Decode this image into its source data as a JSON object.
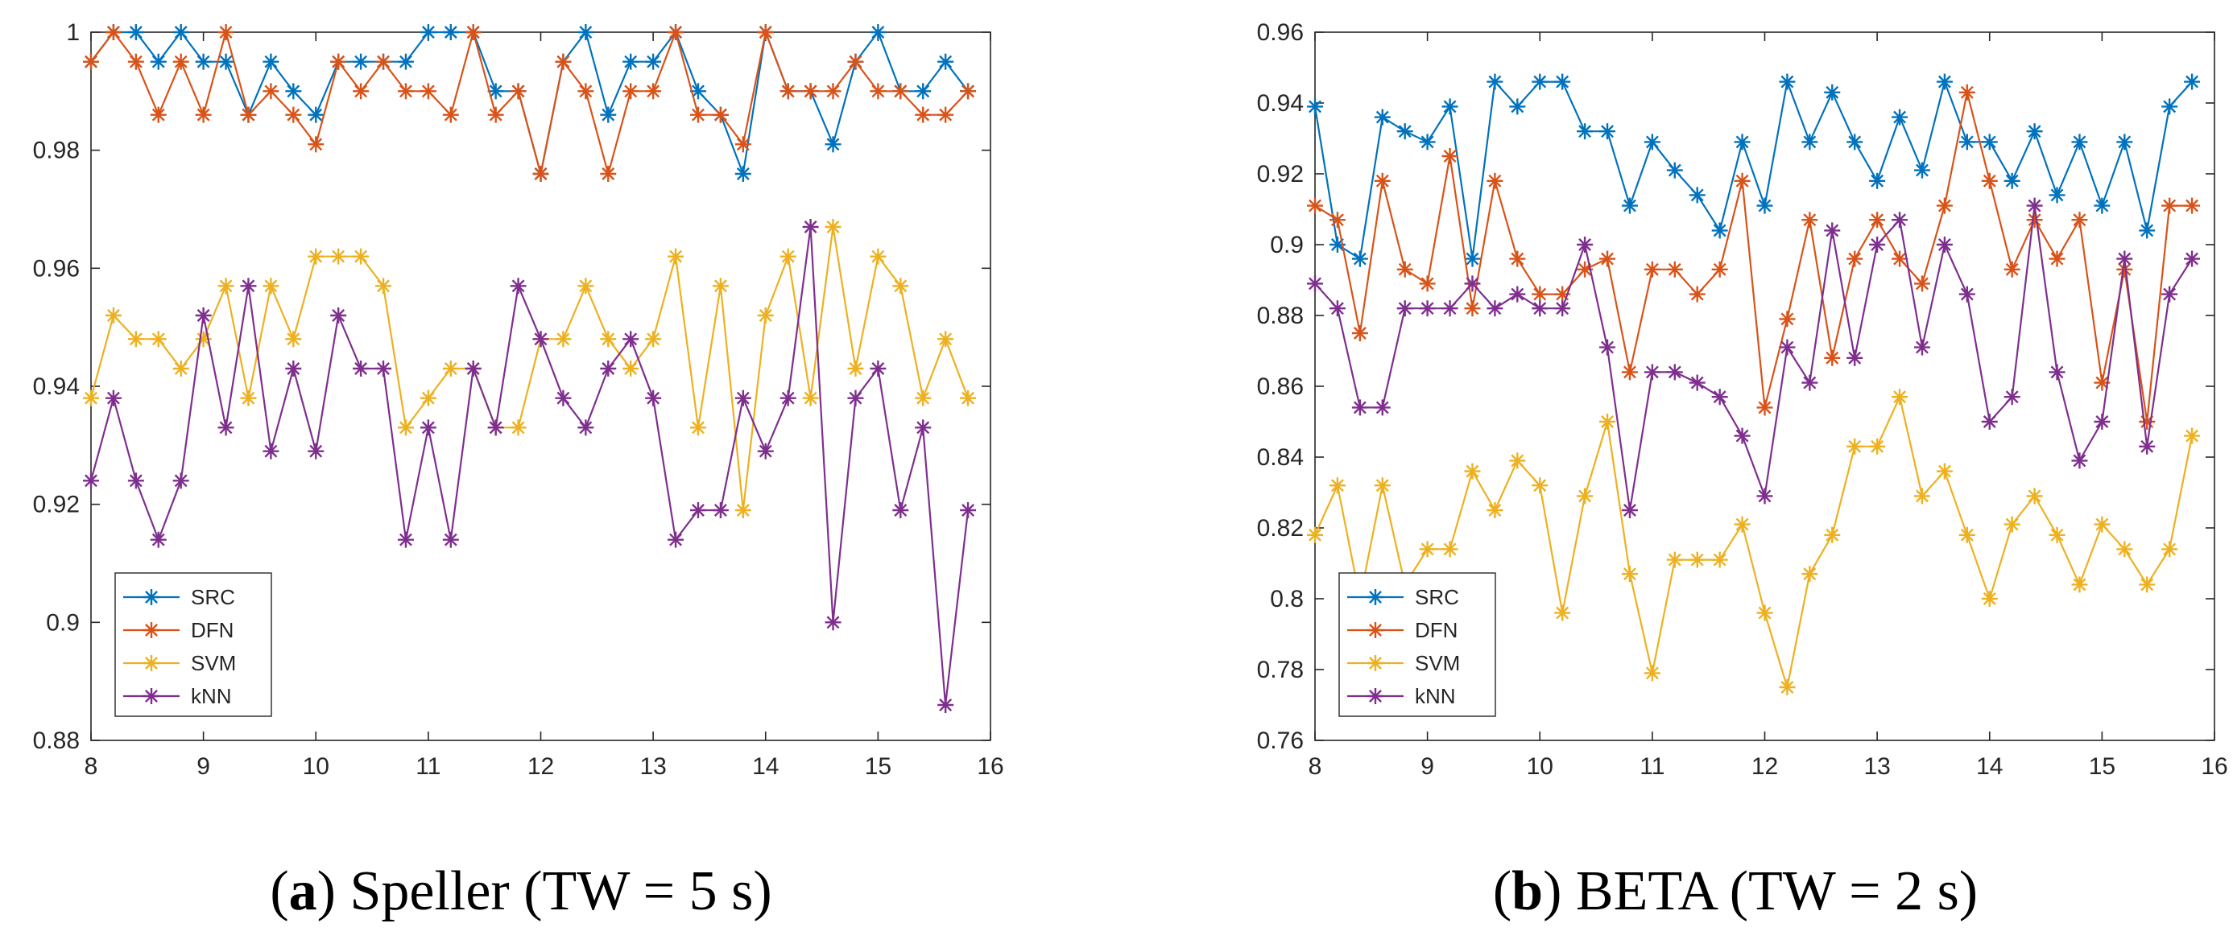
{
  "chart_data": [
    {
      "type": "line",
      "caption": {
        "letter": "a",
        "text": " Speller (TW = 5 s)"
      },
      "xlim": [
        8,
        16
      ],
      "ylim": [
        0.88,
        1.0
      ],
      "xticks": [
        8,
        9,
        10,
        11,
        12,
        13,
        14,
        15,
        16
      ],
      "yticks": [
        0.88,
        0.9,
        0.92,
        0.94,
        0.96,
        0.98,
        1
      ],
      "ytick_labels": [
        "0.88",
        "0.9",
        "0.92",
        "0.94",
        "0.96",
        "0.98",
        "1"
      ],
      "legend_position": "bottom-left",
      "x": [
        8.0,
        8.2,
        8.4,
        8.6,
        8.8,
        9.0,
        9.2,
        9.4,
        9.6,
        9.8,
        10.0,
        10.2,
        10.4,
        10.6,
        10.8,
        11.0,
        11.2,
        11.4,
        11.6,
        11.8,
        12.0,
        12.2,
        12.4,
        12.6,
        12.8,
        13.0,
        13.2,
        13.4,
        13.6,
        13.8,
        14.0,
        14.2,
        14.4,
        14.6,
        14.8,
        15.0,
        15.2,
        15.4,
        15.6,
        15.8
      ],
      "series": [
        {
          "name": "SRC",
          "color": "#0072BD",
          "values": [
            0.995,
            1.0,
            1.0,
            0.995,
            1.0,
            0.995,
            0.995,
            0.986,
            0.995,
            0.99,
            0.986,
            0.995,
            0.995,
            0.995,
            0.995,
            1.0,
            1.0,
            1.0,
            0.99,
            0.99,
            0.976,
            0.995,
            1.0,
            0.986,
            0.995,
            0.995,
            1.0,
            0.99,
            0.986,
            0.976,
            1.0,
            0.99,
            0.99,
            0.981,
            0.995,
            1.0,
            0.99,
            0.99,
            0.995,
            0.99
          ]
        },
        {
          "name": "DFN",
          "color": "#D95319",
          "values": [
            0.995,
            1.0,
            0.995,
            0.986,
            0.995,
            0.986,
            1.0,
            0.986,
            0.99,
            0.986,
            0.981,
            0.995,
            0.99,
            0.995,
            0.99,
            0.99,
            0.986,
            1.0,
            0.986,
            0.99,
            0.976,
            0.995,
            0.99,
            0.976,
            0.99,
            0.99,
            1.0,
            0.986,
            0.986,
            0.981,
            1.0,
            0.99,
            0.99,
            0.99,
            0.995,
            0.99,
            0.99,
            0.986,
            0.986,
            0.99
          ]
        },
        {
          "name": "SVM",
          "color": "#EDB120",
          "values": [
            0.938,
            0.952,
            0.948,
            0.948,
            0.943,
            0.948,
            0.957,
            0.938,
            0.957,
            0.948,
            0.962,
            0.962,
            0.962,
            0.957,
            0.933,
            0.938,
            0.943,
            0.943,
            0.933,
            0.933,
            0.948,
            0.948,
            0.957,
            0.948,
            0.943,
            0.948,
            0.962,
            0.933,
            0.957,
            0.919,
            0.952,
            0.962,
            0.938,
            0.967,
            0.943,
            0.962,
            0.957,
            0.938,
            0.948,
            0.938
          ]
        },
        {
          "name": "kNN",
          "color": "#7E2F8E",
          "values": [
            0.924,
            0.938,
            0.924,
            0.914,
            0.924,
            0.952,
            0.933,
            0.957,
            0.929,
            0.943,
            0.929,
            0.952,
            0.943,
            0.943,
            0.914,
            0.933,
            0.914,
            0.943,
            0.933,
            0.957,
            0.948,
            0.938,
            0.933,
            0.943,
            0.948,
            0.938,
            0.914,
            0.919,
            0.919,
            0.938,
            0.929,
            0.938,
            0.967,
            0.9,
            0.938,
            0.943,
            0.919,
            0.933,
            0.886,
            0.919
          ]
        }
      ]
    },
    {
      "type": "line",
      "caption": {
        "letter": "b",
        "text": " BETA (TW = 2 s)"
      },
      "xlim": [
        8,
        16
      ],
      "ylim": [
        0.76,
        0.96
      ],
      "xticks": [
        8,
        9,
        10,
        11,
        12,
        13,
        14,
        15,
        16
      ],
      "yticks": [
        0.76,
        0.78,
        0.8,
        0.82,
        0.84,
        0.86,
        0.88,
        0.9,
        0.92,
        0.94,
        0.96
      ],
      "ytick_labels": [
        "0.76",
        "0.78",
        "0.8",
        "0.82",
        "0.84",
        "0.86",
        "0.88",
        "0.9",
        "0.92",
        "0.94",
        "0.96"
      ],
      "legend_position": "bottom-left",
      "x": [
        8.0,
        8.2,
        8.4,
        8.6,
        8.8,
        9.0,
        9.2,
        9.4,
        9.6,
        9.8,
        10.0,
        10.2,
        10.4,
        10.6,
        10.8,
        11.0,
        11.2,
        11.4,
        11.6,
        11.8,
        12.0,
        12.2,
        12.4,
        12.6,
        12.8,
        13.0,
        13.2,
        13.4,
        13.6,
        13.8,
        14.0,
        14.2,
        14.4,
        14.6,
        14.8,
        15.0,
        15.2,
        15.4,
        15.6,
        15.8
      ],
      "series": [
        {
          "name": "SRC",
          "color": "#0072BD",
          "values": [
            0.939,
            0.9,
            0.896,
            0.936,
            0.932,
            0.929,
            0.939,
            0.896,
            0.946,
            0.939,
            0.946,
            0.946,
            0.932,
            0.932,
            0.911,
            0.929,
            0.921,
            0.914,
            0.904,
            0.929,
            0.911,
            0.946,
            0.929,
            0.943,
            0.929,
            0.918,
            0.936,
            0.921,
            0.946,
            0.929,
            0.929,
            0.918,
            0.932,
            0.914,
            0.929,
            0.911,
            0.929,
            0.904,
            0.939,
            0.946
          ]
        },
        {
          "name": "DFN",
          "color": "#D95319",
          "values": [
            0.911,
            0.907,
            0.875,
            0.918,
            0.893,
            0.889,
            0.925,
            0.882,
            0.918,
            0.896,
            0.886,
            0.886,
            0.893,
            0.896,
            0.864,
            0.893,
            0.893,
            0.886,
            0.893,
            0.918,
            0.854,
            0.879,
            0.907,
            0.868,
            0.896,
            0.907,
            0.896,
            0.889,
            0.911,
            0.943,
            0.918,
            0.893,
            0.907,
            0.896,
            0.907,
            0.861,
            0.893,
            0.85,
            0.911,
            0.911
          ]
        },
        {
          "name": "SVM",
          "color": "#EDB120",
          "values": [
            0.818,
            0.832,
            0.8,
            0.832,
            0.804,
            0.814,
            0.814,
            0.836,
            0.825,
            0.839,
            0.832,
            0.796,
            0.829,
            0.85,
            0.807,
            0.779,
            0.811,
            0.811,
            0.811,
            0.821,
            0.796,
            0.775,
            0.807,
            0.818,
            0.843,
            0.843,
            0.857,
            0.829,
            0.836,
            0.818,
            0.8,
            0.821,
            0.829,
            0.818,
            0.804,
            0.821,
            0.814,
            0.804,
            0.814,
            0.846
          ]
        },
        {
          "name": "kNN",
          "color": "#7E2F8E",
          "values": [
            0.889,
            0.882,
            0.854,
            0.854,
            0.882,
            0.882,
            0.882,
            0.889,
            0.882,
            0.886,
            0.882,
            0.882,
            0.9,
            0.871,
            0.825,
            0.864,
            0.864,
            0.861,
            0.857,
            0.846,
            0.829,
            0.871,
            0.861,
            0.904,
            0.868,
            0.9,
            0.907,
            0.871,
            0.9,
            0.886,
            0.85,
            0.857,
            0.911,
            0.864,
            0.839,
            0.85,
            0.896,
            0.843,
            0.886,
            0.896
          ]
        }
      ]
    }
  ]
}
